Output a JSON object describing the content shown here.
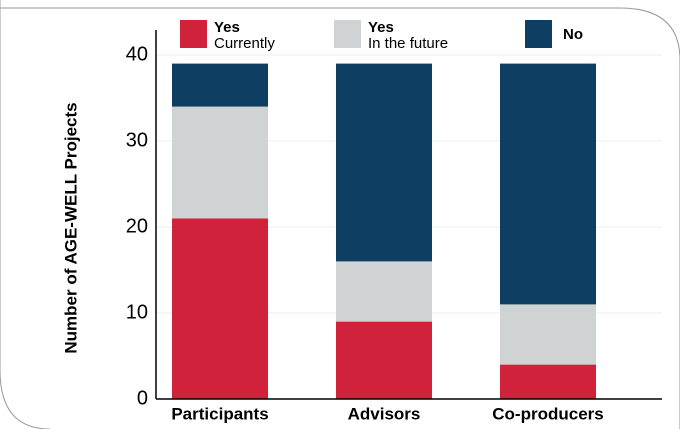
{
  "chart_data": {
    "type": "stacked-bar",
    "y_label": "Number of AGE-WELL Projects",
    "categories": [
      "Participants",
      "Advisors",
      "Co-producers"
    ],
    "series": [
      {
        "name": "Yes",
        "detail": "Currently",
        "color": "#d0223a",
        "values": [
          21,
          9,
          4
        ]
      },
      {
        "name": "Yes",
        "detail": "In the future",
        "color": "#cfd3d3",
        "values": [
          13,
          7,
          7
        ]
      },
      {
        "name": "No",
        "color": "#0e3f63",
        "values": [
          5,
          23,
          28
        ]
      }
    ],
    "ylim": [
      0,
      40
    ],
    "yticks": [
      0,
      10,
      20,
      30,
      40
    ],
    "grid": true
  }
}
